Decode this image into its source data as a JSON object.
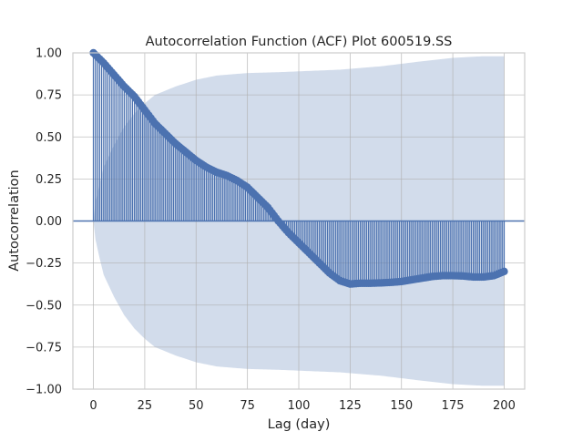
{
  "chart_data": {
    "type": "stem",
    "title": "Autocorrelation Function (ACF) Plot 600519.SS",
    "xlabel": "Lag (day)",
    "ylabel": "Autocorrelation",
    "xlim": [
      -10,
      210
    ],
    "ylim": [
      -1.0,
      1.0
    ],
    "xticks": [
      0,
      25,
      50,
      75,
      100,
      125,
      150,
      175,
      200
    ],
    "yticks": [
      -1.0,
      -0.75,
      -0.5,
      -0.25,
      0.0,
      0.25,
      0.5,
      0.75,
      1.0
    ],
    "xtick_labels": [
      "0",
      "25",
      "50",
      "75",
      "100",
      "125",
      "150",
      "175",
      "200"
    ],
    "ytick_labels": [
      "−1.00",
      "−0.75",
      "−0.50",
      "−0.25",
      "0.00",
      "0.25",
      "0.50",
      "0.75",
      "1.00"
    ],
    "grid": true,
    "lags": {
      "start": 0,
      "end": 200,
      "step": 1
    },
    "acf_anchors": [
      [
        0,
        1.0
      ],
      [
        5,
        0.94
      ],
      [
        10,
        0.87
      ],
      [
        15,
        0.8
      ],
      [
        20,
        0.74
      ],
      [
        25,
        0.66
      ],
      [
        30,
        0.58
      ],
      [
        35,
        0.52
      ],
      [
        40,
        0.46
      ],
      [
        45,
        0.41
      ],
      [
        50,
        0.36
      ],
      [
        55,
        0.32
      ],
      [
        60,
        0.29
      ],
      [
        65,
        0.27
      ],
      [
        70,
        0.24
      ],
      [
        75,
        0.2
      ],
      [
        80,
        0.14
      ],
      [
        85,
        0.08
      ],
      [
        90,
        0.0
      ],
      [
        95,
        -0.07
      ],
      [
        100,
        -0.13
      ],
      [
        105,
        -0.19
      ],
      [
        110,
        -0.25
      ],
      [
        115,
        -0.31
      ],
      [
        120,
        -0.355
      ],
      [
        125,
        -0.375
      ],
      [
        130,
        -0.37
      ],
      [
        135,
        -0.37
      ],
      [
        140,
        -0.368
      ],
      [
        145,
        -0.365
      ],
      [
        150,
        -0.36
      ],
      [
        155,
        -0.35
      ],
      [
        160,
        -0.34
      ],
      [
        165,
        -0.33
      ],
      [
        170,
        -0.325
      ],
      [
        175,
        -0.325
      ],
      [
        180,
        -0.327
      ],
      [
        185,
        -0.333
      ],
      [
        190,
        -0.333
      ],
      [
        195,
        -0.325
      ],
      [
        200,
        -0.3
      ]
    ],
    "confidence_band_anchors": [
      [
        0,
        0.0
      ],
      [
        1,
        0.11
      ],
      [
        3,
        0.22
      ],
      [
        5,
        0.32
      ],
      [
        10,
        0.45
      ],
      [
        15,
        0.56
      ],
      [
        20,
        0.64
      ],
      [
        25,
        0.7
      ],
      [
        30,
        0.75
      ],
      [
        40,
        0.8
      ],
      [
        50,
        0.84
      ],
      [
        60,
        0.865
      ],
      [
        75,
        0.88
      ],
      [
        90,
        0.885
      ],
      [
        100,
        0.89
      ],
      [
        120,
        0.9
      ],
      [
        140,
        0.92
      ],
      [
        160,
        0.95
      ],
      [
        175,
        0.97
      ],
      [
        190,
        0.98
      ],
      [
        200,
        0.98
      ]
    ],
    "colors": {
      "stem": "#4c72b0",
      "band": "#4c72b0",
      "band_opacity": 0.25,
      "grid": "#b0b0b0",
      "spine": "#cccccc"
    }
  }
}
